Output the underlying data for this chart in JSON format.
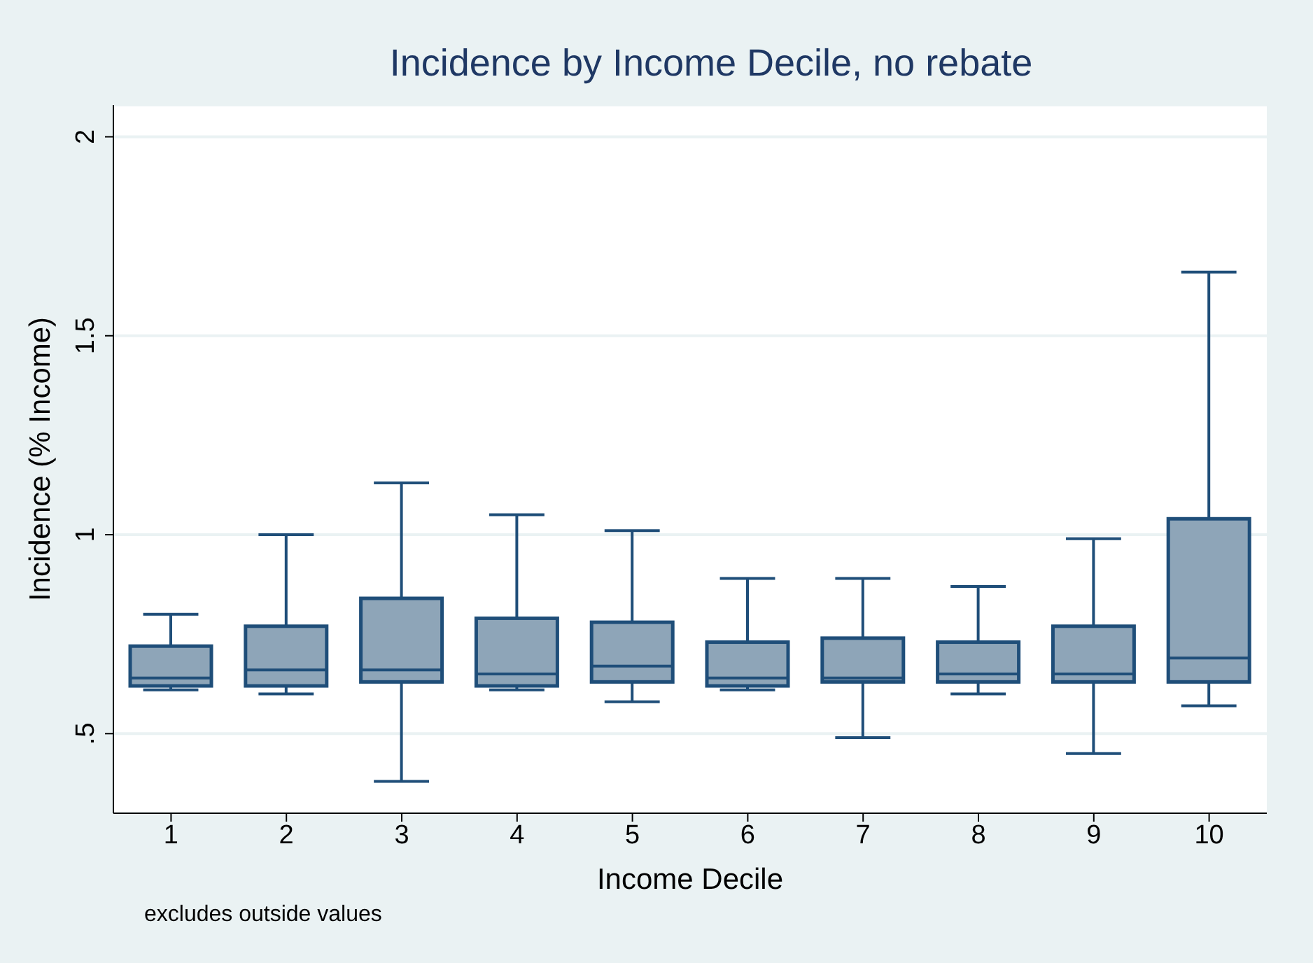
{
  "chart_data": {
    "type": "box",
    "title": "Incidence by Income Decile, no rebate",
    "xlabel": "Income Decile",
    "ylabel": "Incidence (% Income)",
    "annotations": [
      "excludes outside values"
    ],
    "categories": [
      "1",
      "2",
      "3",
      "4",
      "5",
      "6",
      "7",
      "8",
      "9",
      "10"
    ],
    "color": "#8ea5b8",
    "boxes": [
      {
        "low": 0.61,
        "q1": 0.62,
        "median": 0.64,
        "q3": 0.72,
        "high": 0.8
      },
      {
        "low": 0.6,
        "q1": 0.62,
        "median": 0.66,
        "q3": 0.77,
        "high": 1.0
      },
      {
        "low": 0.38,
        "q1": 0.63,
        "median": 0.66,
        "q3": 0.84,
        "high": 1.13
      },
      {
        "low": 0.61,
        "q1": 0.62,
        "median": 0.65,
        "q3": 0.79,
        "high": 1.05
      },
      {
        "low": 0.58,
        "q1": 0.63,
        "median": 0.67,
        "q3": 0.78,
        "high": 1.01
      },
      {
        "low": 0.61,
        "q1": 0.62,
        "median": 0.64,
        "q3": 0.73,
        "high": 0.89
      },
      {
        "low": 0.49,
        "q1": 0.63,
        "median": 0.64,
        "q3": 0.74,
        "high": 0.89
      },
      {
        "low": 0.6,
        "q1": 0.63,
        "median": 0.65,
        "q3": 0.73,
        "high": 0.87
      },
      {
        "low": 0.45,
        "q1": 0.63,
        "median": 0.65,
        "q3": 0.77,
        "high": 0.99
      },
      {
        "low": 0.57,
        "q1": 0.63,
        "median": 0.69,
        "q3": 1.04,
        "high": 1.66
      }
    ],
    "ylim": [
      0.3,
      2.08
    ],
    "yticks": [
      {
        "value": 0.5,
        "label": ".5"
      },
      1,
      1.5,
      2
    ],
    "grid": "y"
  }
}
